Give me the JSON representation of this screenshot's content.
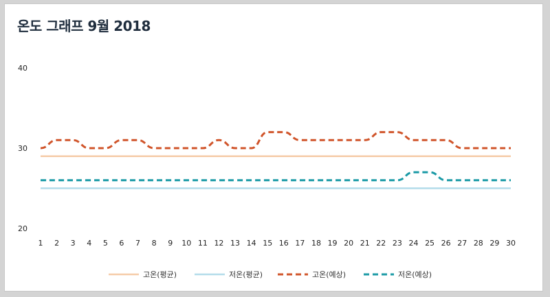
{
  "chart_data": {
    "type": "line",
    "title": "온도 그래프 9월 2018",
    "x": [
      1,
      2,
      3,
      4,
      5,
      6,
      7,
      8,
      9,
      10,
      11,
      12,
      13,
      14,
      15,
      16,
      17,
      18,
      19,
      20,
      21,
      22,
      23,
      24,
      25,
      26,
      27,
      28,
      29,
      30
    ],
    "x_tick_labels": [
      "1",
      "2",
      "3",
      "4",
      "5",
      "6",
      "7",
      "8",
      "9",
      "10",
      "11",
      "12",
      "13",
      "14",
      "15",
      "16",
      "17",
      "18",
      "19",
      "20",
      "21",
      "22",
      "23",
      "24",
      "25",
      "26",
      "27",
      "28",
      "29",
      "30"
    ],
    "ylim": [
      20,
      40
    ],
    "y_ticks": [
      20,
      30,
      40
    ],
    "y_tick_labels": [
      "20",
      "30",
      "40"
    ],
    "grid": false,
    "legend_position": "bottom",
    "series": [
      {
        "name": "고온(평균)",
        "style": "solid",
        "color": "#f5cba7",
        "values": [
          29,
          29,
          29,
          29,
          29,
          29,
          29,
          29,
          29,
          29,
          29,
          29,
          29,
          29,
          29,
          29,
          29,
          29,
          29,
          29,
          29,
          29,
          29,
          29,
          29,
          29,
          29,
          29,
          29,
          29
        ]
      },
      {
        "name": "저온(평균)",
        "style": "solid",
        "color": "#b3dcea",
        "values": [
          25,
          25,
          25,
          25,
          25,
          25,
          25,
          25,
          25,
          25,
          25,
          25,
          25,
          25,
          25,
          25,
          25,
          25,
          25,
          25,
          25,
          25,
          25,
          25,
          25,
          25,
          25,
          25,
          25,
          25
        ]
      },
      {
        "name": "고온(예상)",
        "style": "dashed",
        "color": "#d0542a",
        "values": [
          30,
          31,
          31,
          30,
          30,
          31,
          31,
          30,
          30,
          30,
          30,
          31,
          30,
          30,
          32,
          32,
          31,
          31,
          31,
          31,
          31,
          32,
          32,
          31,
          31,
          31,
          30,
          30,
          30,
          30
        ]
      },
      {
        "name": "저온(예상)",
        "style": "dashed",
        "color": "#1a9aa6",
        "values": [
          26,
          26,
          26,
          26,
          26,
          26,
          26,
          26,
          26,
          26,
          26,
          26,
          26,
          26,
          26,
          26,
          26,
          26,
          26,
          26,
          26,
          26,
          26,
          27,
          27,
          26,
          26,
          26,
          26,
          26
        ]
      }
    ]
  }
}
